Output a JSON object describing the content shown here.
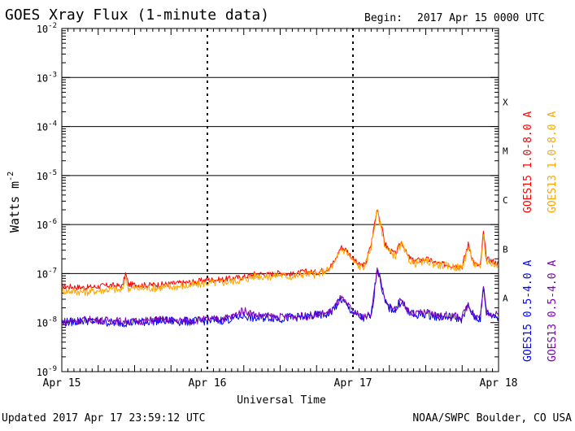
{
  "chart_data": {
    "type": "line",
    "title": "GOES Xray Flux (1-minute data)",
    "begin_label": "Begin:",
    "begin_value": "2017 Apr 15 0000 UTC",
    "xlabel": "Universal Time",
    "ylabel_base": "Watts m",
    "ylabel_exp": "-2",
    "y_scale": "log",
    "ylim": [
      1e-09,
      0.01
    ],
    "xlim_hours": [
      0,
      72
    ],
    "x_ticks": [
      {
        "label": "Apr 15",
        "hour": 0
      },
      {
        "label": "Apr 16",
        "hour": 24
      },
      {
        "label": "Apr 17",
        "hour": 48
      },
      {
        "label": "Apr 18",
        "hour": 72
      }
    ],
    "y_ticks": [
      {
        "base": "10",
        "exp": "-9",
        "value": 1e-09
      },
      {
        "base": "10",
        "exp": "-8",
        "value": 1e-08
      },
      {
        "base": "10",
        "exp": "-7",
        "value": 1e-07
      },
      {
        "base": "10",
        "exp": "-6",
        "value": 1e-06
      },
      {
        "base": "10",
        "exp": "-5",
        "value": 1e-05
      },
      {
        "base": "10",
        "exp": "-4",
        "value": 0.0001
      },
      {
        "base": "10",
        "exp": "-3",
        "value": 0.001
      },
      {
        "base": "10",
        "exp": "-2",
        "value": 0.01
      }
    ],
    "flare_classes": [
      {
        "label": "A",
        "value": 3.16e-08
      },
      {
        "label": "B",
        "value": 3.16e-07
      },
      {
        "label": "C",
        "value": 3.16e-06
      },
      {
        "label": "M",
        "value": 3.16e-05
      },
      {
        "label": "X",
        "value": 0.000316
      }
    ],
    "threshold_lines": [
      1e-07,
      1e-06,
      1e-05,
      0.0001,
      0.001
    ],
    "series": [
      {
        "name": "GOES15 1.0-8.0 A",
        "color": "#ff0000",
        "x": [
          0,
          4,
          8,
          10,
          10.5,
          11,
          14,
          18,
          22,
          24,
          26,
          28,
          30,
          32,
          34,
          36,
          38,
          40,
          42,
          44,
          45,
          46,
          47,
          48,
          49,
          50,
          51,
          52,
          52.8,
          53.3,
          54,
          55,
          56,
          57,
          58,
          60,
          62,
          64,
          66,
          67,
          68,
          69,
          69.5,
          70,
          71,
          72
        ],
        "y": [
          5.5e-08,
          5.2e-08,
          5.8e-08,
          5.5e-08,
          1e-07,
          6e-08,
          5.8e-08,
          6.2e-08,
          6.8e-08,
          7.5e-08,
          7.5e-08,
          8e-08,
          8.5e-08,
          1e-07,
          9.5e-08,
          1.05e-07,
          9.5e-08,
          1.1e-07,
          1.05e-07,
          1.3e-07,
          1.8e-07,
          3.5e-07,
          3e-07,
          2e-07,
          1.5e-07,
          1.5e-07,
          4e-07,
          2.2e-06,
          8e-07,
          4e-07,
          3e-07,
          2.5e-07,
          4.5e-07,
          2.3e-07,
          1.8e-07,
          2e-07,
          1.6e-07,
          1.5e-07,
          1.4e-07,
          4e-07,
          1.6e-07,
          1.4e-07,
          7e-07,
          2e-07,
          1.8e-07,
          1.6e-07
        ]
      },
      {
        "name": "GOES13 1.0-8.0 A",
        "color": "#ffa500",
        "x": [
          0,
          4,
          8,
          10,
          10.5,
          11,
          14,
          18,
          22,
          24,
          26,
          28,
          30,
          32,
          34,
          36,
          38,
          40,
          42,
          44,
          45,
          46,
          47,
          48,
          49,
          50,
          51,
          52,
          52.8,
          53.3,
          54,
          55,
          56,
          57,
          58,
          60,
          62,
          64,
          66,
          67,
          68,
          69,
          69.5,
          70,
          71,
          72
        ],
        "y": [
          4.5e-08,
          4.2e-08,
          4.8e-08,
          4.5e-08,
          8.5e-08,
          5e-08,
          5e-08,
          5.3e-08,
          5.8e-08,
          6.5e-08,
          6.5e-08,
          7e-08,
          7.5e-08,
          9e-08,
          8.5e-08,
          9.5e-08,
          8.5e-08,
          1e-07,
          9.5e-08,
          1.2e-07,
          1.6e-07,
          3.2e-07,
          2.7e-07,
          1.8e-07,
          1.4e-07,
          1.4e-07,
          3.6e-07,
          2e-06,
          7e-07,
          3.6e-07,
          2.7e-07,
          2.3e-07,
          4e-07,
          2.1e-07,
          1.6e-07,
          1.8e-07,
          1.5e-07,
          1.4e-07,
          1.3e-07,
          3.5e-07,
          1.5e-07,
          1.3e-07,
          6e-07,
          1.8e-07,
          1.6e-07,
          1.4e-07
        ]
      },
      {
        "name": "GOES15 0.5-4.0 A",
        "color": "#0000ff",
        "x": [
          0,
          4,
          8,
          12,
          16,
          20,
          24,
          26,
          28,
          30,
          32,
          34,
          36,
          38,
          40,
          42,
          44,
          45,
          46,
          47,
          48,
          49,
          50,
          51,
          51.5,
          52,
          52.8,
          53.3,
          54,
          55,
          56,
          57,
          58,
          60,
          62,
          64,
          66,
          67,
          68,
          69,
          69.5,
          70,
          71,
          72
        ],
        "y": [
          1e-08,
          1.1e-08,
          1e-08,
          1e-08,
          1.1e-08,
          1.05e-08,
          1.1e-08,
          1.1e-08,
          1.2e-08,
          1.4e-08,
          1.2e-08,
          1.3e-08,
          1.2e-08,
          1.3e-08,
          1.3e-08,
          1.4e-08,
          1.5e-08,
          2e-08,
          3e-08,
          2.2e-08,
          1.6e-08,
          1.3e-08,
          1.2e-08,
          1.4e-08,
          4e-08,
          1.4e-07,
          5e-08,
          2.5e-08,
          2e-08,
          1.8e-08,
          2.8e-08,
          1.7e-08,
          1.4e-08,
          1.5e-08,
          1.3e-08,
          1.3e-08,
          1.2e-08,
          2.2e-08,
          1.3e-08,
          1.2e-08,
          5e-08,
          1.6e-08,
          1.4e-08,
          1.3e-08
        ]
      },
      {
        "name": "GOES13 0.5-4.0 A",
        "color": "#7b00b4",
        "x": [
          0,
          4,
          8,
          12,
          16,
          20,
          24,
          26,
          28,
          30,
          32,
          34,
          36,
          38,
          40,
          42,
          44,
          45,
          46,
          47,
          48,
          49,
          50,
          51,
          51.5,
          52,
          52.8,
          53.3,
          54,
          55,
          56,
          57,
          58,
          60,
          62,
          64,
          66,
          67,
          68,
          69,
          69.5,
          70,
          71,
          72
        ],
        "y": [
          1.05e-08,
          1.15e-08,
          1.1e-08,
          1.05e-08,
          1.15e-08,
          1.1e-08,
          1.15e-08,
          1.2e-08,
          1.3e-08,
          1.8e-08,
          1.4e-08,
          1.35e-08,
          1.3e-08,
          1.35e-08,
          1.35e-08,
          1.45e-08,
          1.6e-08,
          2.1e-08,
          3.2e-08,
          2.3e-08,
          1.7e-08,
          1.4e-08,
          1.3e-08,
          1.5e-08,
          4.2e-08,
          1.3e-07,
          5.2e-08,
          2.6e-08,
          2.1e-08,
          1.9e-08,
          3e-08,
          1.8e-08,
          1.5e-08,
          1.6e-08,
          1.4e-08,
          1.4e-08,
          1.3e-08,
          2.4e-08,
          1.4e-08,
          1.3e-08,
          5.5e-08,
          1.7e-08,
          1.5e-08,
          1.4e-08
        ]
      }
    ]
  },
  "footer": {
    "updated": "Updated 2017 Apr 17 23:59:12 UTC",
    "source": "NOAA/SWPC Boulder, CO USA"
  }
}
